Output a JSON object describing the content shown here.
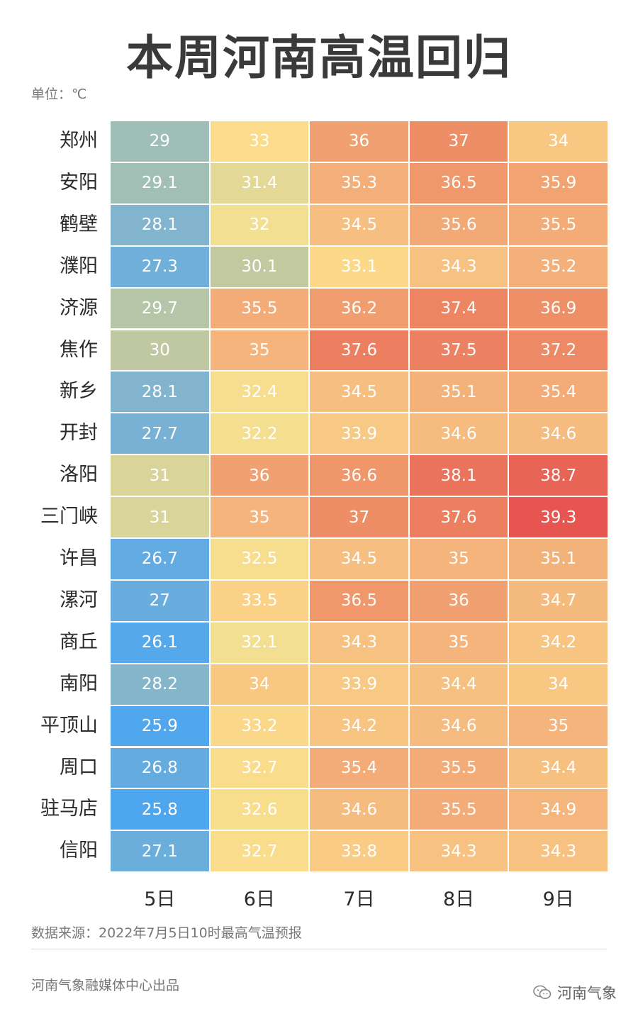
{
  "title": "本周河南高温回归",
  "unit": "单位：℃",
  "chart_data": {
    "type": "heatmap",
    "title": "本周河南高温回归",
    "columns": [
      "5日",
      "6日",
      "7日",
      "8日",
      "9日"
    ],
    "rows": [
      "郑州",
      "安阳",
      "鹤壁",
      "濮阳",
      "济源",
      "焦作",
      "新乡",
      "开封",
      "洛阳",
      "三门峡",
      "许昌",
      "漯河",
      "商丘",
      "南阳",
      "平顶山",
      "周口",
      "驻马店",
      "信阳"
    ],
    "values": [
      [
        "29",
        "33",
        "36",
        "37",
        "34"
      ],
      [
        "29.1",
        "31.4",
        "35.3",
        "36.5",
        "35.9"
      ],
      [
        "28.1",
        "32",
        "34.5",
        "35.6",
        "35.5"
      ],
      [
        "27.3",
        "30.1",
        "33.1",
        "34.3",
        "35.2"
      ],
      [
        "29.7",
        "35.5",
        "36.2",
        "37.4",
        "36.9"
      ],
      [
        "30",
        "35",
        "37.6",
        "37.5",
        "37.2"
      ],
      [
        "28.1",
        "32.4",
        "34.5",
        "35.1",
        "35.4"
      ],
      [
        "27.7",
        "32.2",
        "33.9",
        "34.6",
        "34.6"
      ],
      [
        "31",
        "36",
        "36.6",
        "38.1",
        "38.7"
      ],
      [
        "31",
        "35",
        "37",
        "37.6",
        "39.3"
      ],
      [
        "26.7",
        "32.5",
        "34.5",
        "35",
        "35.1"
      ],
      [
        "27",
        "33.5",
        "36.5",
        "36",
        "34.7"
      ],
      [
        "26.1",
        "32.1",
        "34.3",
        "35",
        "34.2"
      ],
      [
        "28.2",
        "34",
        "33.9",
        "34.4",
        "34"
      ],
      [
        "25.9",
        "33.2",
        "34.2",
        "34.6",
        "35"
      ],
      [
        "26.8",
        "32.7",
        "35.4",
        "35.5",
        "34.4"
      ],
      [
        "25.8",
        "32.6",
        "34.6",
        "35.5",
        "34.9"
      ],
      [
        "27.1",
        "32.7",
        "33.8",
        "34.3",
        "34.3"
      ]
    ],
    "color_scale": {
      "stops": [
        {
          "value": 25.8,
          "color": "#4ea6ee"
        },
        {
          "value": 28.0,
          "color": "#7fb3d0"
        },
        {
          "value": 30.0,
          "color": "#bfc8a0"
        },
        {
          "value": 32.0,
          "color": "#f2df92"
        },
        {
          "value": 33.0,
          "color": "#fcdb8a"
        },
        {
          "value": 35.0,
          "color": "#f4b47c"
        },
        {
          "value": 37.0,
          "color": "#ee8e66"
        },
        {
          "value": 39.3,
          "color": "#e65550"
        }
      ]
    }
  },
  "footer": {
    "source": "数据来源：2022年7月5日10时最高气温预报",
    "producer": "河南气象融媒体中心出品",
    "wechat_name": "河南气象",
    "wechat_icon": "wechat-icon"
  }
}
